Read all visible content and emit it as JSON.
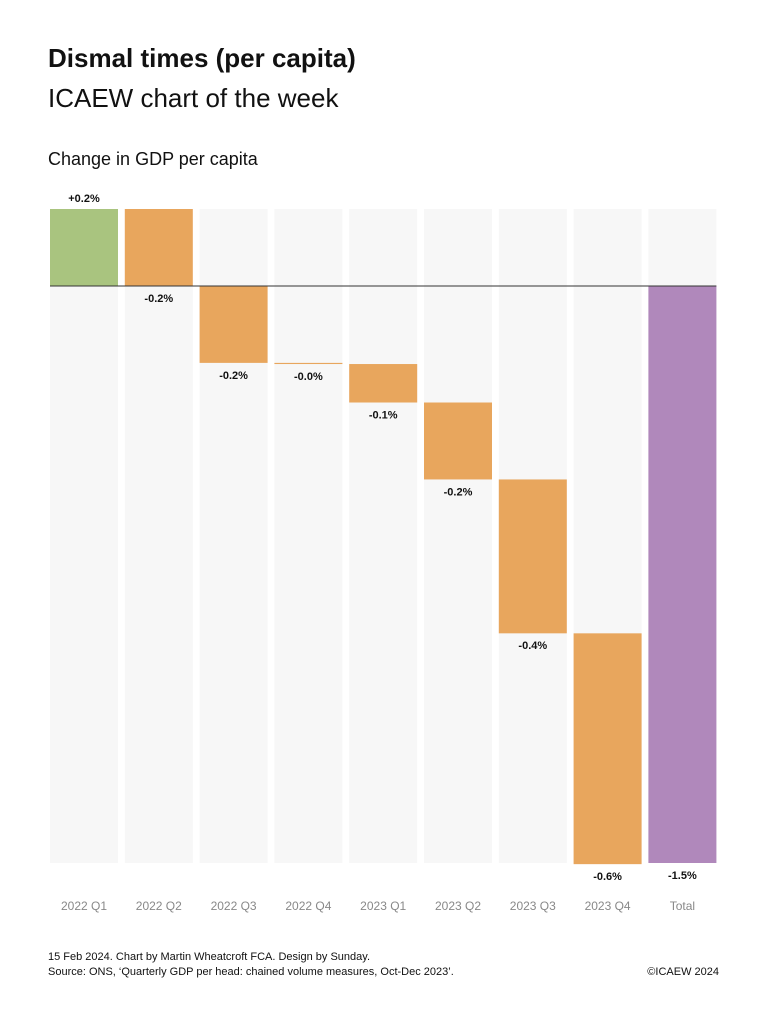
{
  "chart_data": {
    "type": "waterfall",
    "title": "Dismal times (per capita)",
    "subtitle": "ICAEW chart of the week",
    "axis_title": "Change in GDP per capita",
    "categories": [
      "2022 Q1",
      "2022 Q2",
      "2022 Q3",
      "2022 Q4",
      "2023 Q1",
      "2023 Q2",
      "2023 Q3",
      "2023 Q4"
    ],
    "values": [
      0.2,
      -0.2,
      -0.2,
      -0.003,
      -0.1,
      -0.2,
      -0.4,
      -0.6
    ],
    "value_labels": [
      "+0.2%",
      "-0.2%",
      "-0.2%",
      "-0.0%",
      "-0.1%",
      "-0.2%",
      "-0.4%",
      "-0.6%"
    ],
    "total": {
      "label": "Total",
      "value": -1.5,
      "value_label": "-1.5%",
      "color": "#b088bb"
    },
    "colors": {
      "increase": "#a9c47f",
      "decrease": "#e8a65d"
    },
    "ylim": [
      -1.5,
      0.2
    ],
    "credit": "15 Feb 2024.   Chart by Martin Wheatcroft FCA. Design by Sunday.",
    "source": "Source: ONS, ‘Quarterly GDP per head: chained volume measures, Oct-Dec 2023’.",
    "copyright": "©ICAEW 2024"
  }
}
